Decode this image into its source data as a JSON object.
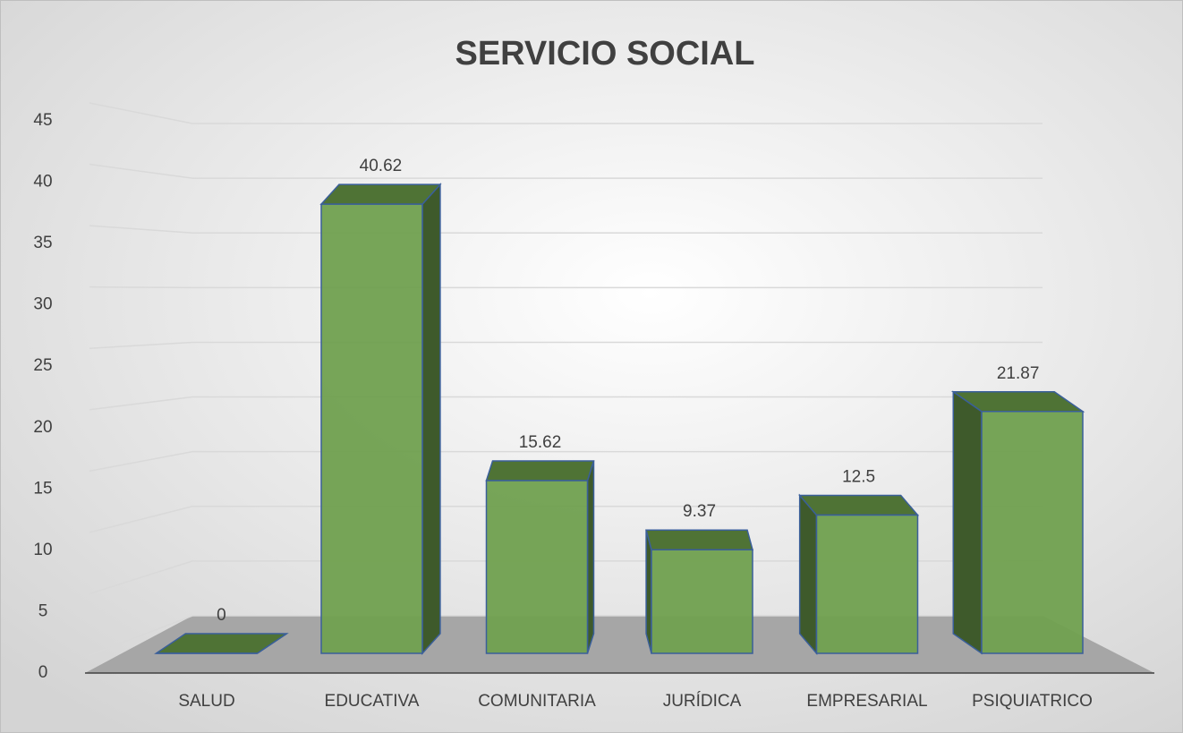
{
  "chart_data": {
    "type": "bar3d",
    "title": "SERVICIO SOCIAL",
    "categories": [
      "SALUD",
      "EDUCATIVA",
      "COMUNITARIA",
      "JURÍDICA",
      "EMPRESARIAL",
      "PSIQUIATRICO"
    ],
    "values": [
      0,
      40.62,
      15.62,
      9.37,
      12.5,
      21.87
    ],
    "color": "#70a04f",
    "ylim": [
      0,
      45
    ],
    "yticks": [
      0,
      5,
      10,
      15,
      20,
      25,
      30,
      35,
      40,
      45
    ],
    "grid": true
  }
}
